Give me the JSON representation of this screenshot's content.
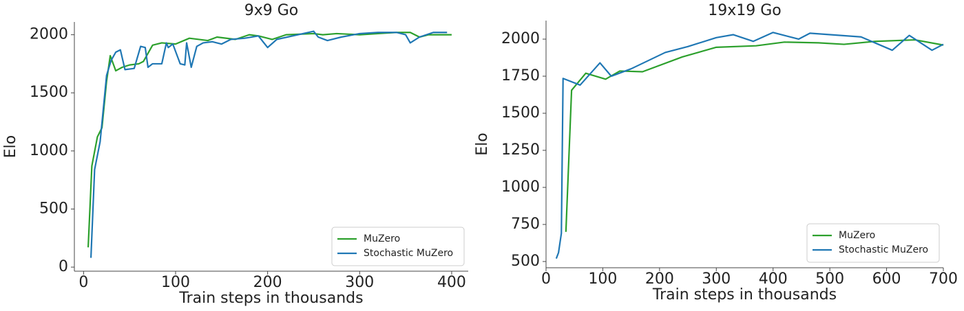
{
  "chart_data": [
    {
      "type": "line",
      "title": "9x9 Go",
      "x_label": "Train steps in thousands",
      "y_label": "Elo",
      "xlim": [
        -10,
        418
      ],
      "ylim": [
        -35,
        2110
      ],
      "xticks": [
        0,
        100,
        200,
        300,
        400
      ],
      "yticks": [
        0,
        500,
        1000,
        1500,
        2000
      ],
      "legend": "lower right",
      "series": [
        {
          "name": "MuZero",
          "color": "#2ca02c",
          "x": [
            5,
            9,
            15,
            20,
            25,
            29,
            35,
            42,
            50,
            60,
            65,
            75,
            85,
            100,
            115,
            135,
            145,
            165,
            180,
            190,
            205,
            220,
            250,
            260,
            275,
            300,
            320,
            340,
            355,
            365,
            375,
            400
          ],
          "values": [
            170,
            870,
            1120,
            1200,
            1600,
            1820,
            1690,
            1720,
            1740,
            1750,
            1770,
            1910,
            1930,
            1920,
            1970,
            1950,
            1980,
            1960,
            2000,
            1990,
            1960,
            2000,
            2010,
            2000,
            2010,
            2000,
            2010,
            2020,
            2020,
            1980,
            2000,
            2000
          ]
        },
        {
          "name": "Stochastic MuZero",
          "color": "#1f77b4",
          "x": [
            8,
            12,
            18,
            25,
            30,
            35,
            40,
            45,
            55,
            62,
            67,
            70,
            75,
            85,
            90,
            92,
            97,
            105,
            110,
            112,
            117,
            123,
            130,
            140,
            150,
            160,
            175,
            190,
            200,
            210,
            250,
            255,
            265,
            280,
            300,
            320,
            340,
            350,
            355,
            365,
            380,
            395
          ],
          "values": [
            80,
            840,
            1080,
            1650,
            1780,
            1850,
            1870,
            1700,
            1710,
            1900,
            1890,
            1720,
            1750,
            1750,
            1930,
            1890,
            1920,
            1750,
            1740,
            1930,
            1720,
            1900,
            1930,
            1940,
            1920,
            1960,
            1970,
            1990,
            1890,
            1960,
            2030,
            1980,
            1950,
            1980,
            2010,
            2020,
            2020,
            2000,
            1930,
            1980,
            2020,
            2020
          ]
        }
      ]
    },
    {
      "type": "line",
      "title": "19x19 Go",
      "x_label": "Train steps in thousands",
      "y_label": "Elo",
      "xlim": [
        0,
        700
      ],
      "ylim": [
        458,
        2125
      ],
      "xticks": [
        0,
        100,
        200,
        300,
        400,
        500,
        600,
        700
      ],
      "yticks": [
        500,
        750,
        1000,
        1250,
        1500,
        1750,
        2000
      ],
      "legend": "lower right",
      "series": [
        {
          "name": "MuZero",
          "color": "#2ca02c",
          "x": [
            35,
            45,
            70,
            105,
            130,
            170,
            240,
            300,
            370,
            420,
            480,
            525,
            580,
            650,
            700
          ],
          "values": [
            700,
            1655,
            1770,
            1730,
            1785,
            1780,
            1880,
            1945,
            1955,
            1980,
            1975,
            1965,
            1985,
            1995,
            1960
          ]
        },
        {
          "name": "Stochastic MuZero",
          "color": "#1f77b4",
          "x": [
            18,
            22,
            27,
            30,
            60,
            95,
            115,
            150,
            210,
            250,
            300,
            330,
            365,
            400,
            445,
            465,
            555,
            610,
            640,
            680,
            700
          ],
          "values": [
            520,
            560,
            690,
            1735,
            1690,
            1840,
            1750,
            1800,
            1910,
            1950,
            2010,
            2030,
            1985,
            2045,
            2000,
            2040,
            2015,
            1925,
            2025,
            1925,
            1965
          ]
        }
      ]
    }
  ]
}
